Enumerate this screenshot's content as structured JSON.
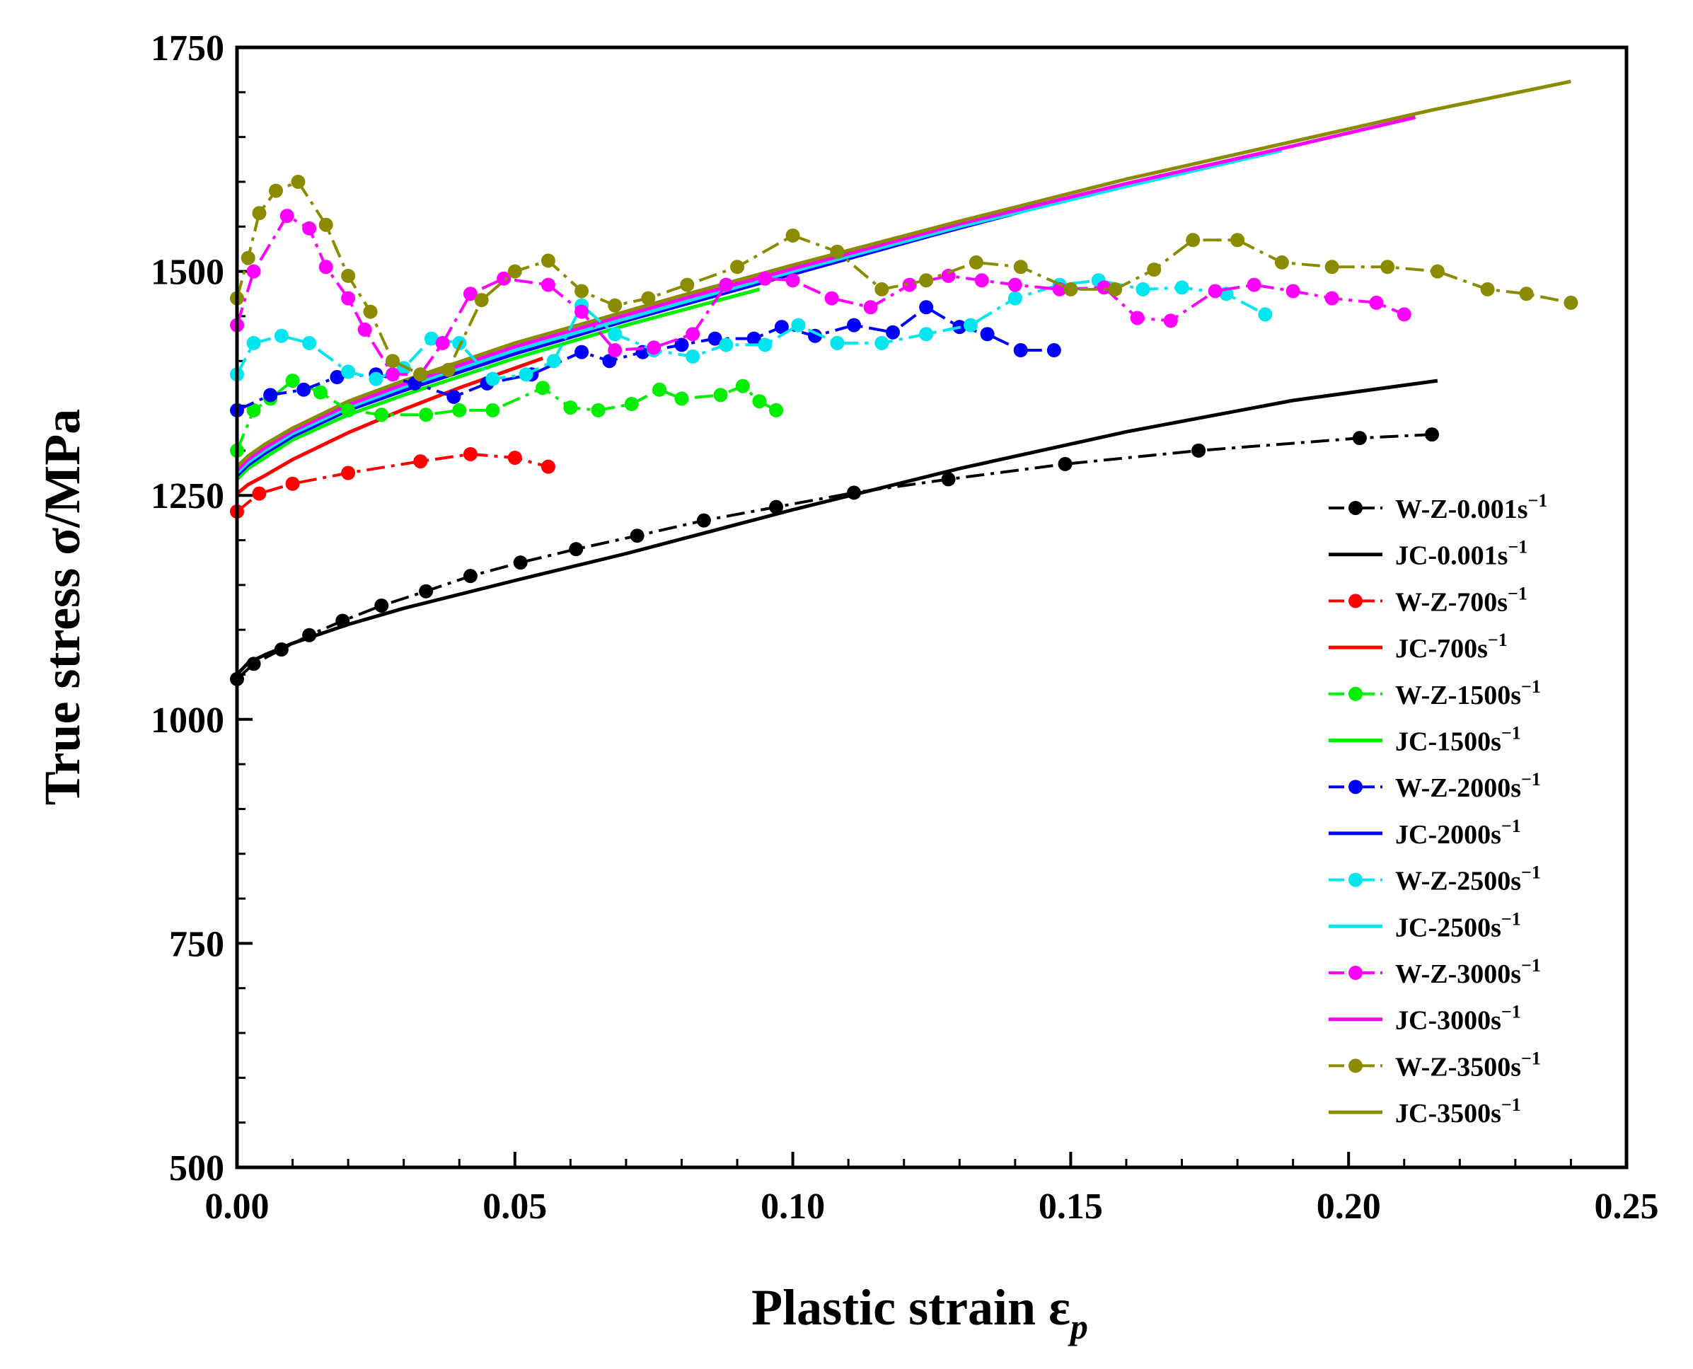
{
  "chart_data": {
    "type": "line",
    "xlabel": "Plastic strain ε",
    "xlabel_sub": "p",
    "ylabel": "True stress σ/MPa",
    "xlim": [
      0,
      0.25
    ],
    "ylim": [
      500,
      1750
    ],
    "xticks": [
      0,
      0.05,
      0.1,
      0.15,
      0.2,
      0.25
    ],
    "xtick_labels": [
      "0.00",
      "0.05",
      "0.10",
      "0.15",
      "0.20",
      "0.25"
    ],
    "yticks": [
      500,
      750,
      1000,
      1250,
      1500,
      1750
    ],
    "ytick_labels": [
      "500",
      "750",
      "1000",
      "1250",
      "1500",
      "1750"
    ],
    "legend_position": "lower-right",
    "series": [
      {
        "name": "W-Z-0.001s",
        "sup": "−1",
        "kind": "test",
        "color": "#000000",
        "x": [
          0.0,
          0.003,
          0.008,
          0.013,
          0.019,
          0.026,
          0.034,
          0.042,
          0.051,
          0.061,
          0.072,
          0.084,
          0.097,
          0.111,
          0.128,
          0.149,
          0.173,
          0.202,
          0.215
        ],
        "y": [
          1045,
          1062,
          1078,
          1094,
          1110,
          1127,
          1143,
          1160,
          1175,
          1190,
          1205,
          1222,
          1237,
          1253,
          1268,
          1285,
          1300,
          1314,
          1318
        ]
      },
      {
        "name": "JC-0.001s",
        "sup": "−1",
        "kind": "model",
        "color": "#000000",
        "x": [
          0.0,
          0.002,
          0.005,
          0.01,
          0.02,
          0.03,
          0.05,
          0.07,
          0.1,
          0.13,
          0.16,
          0.19,
          0.216
        ],
        "y": [
          1050,
          1063,
          1072,
          1085,
          1106,
          1124,
          1155,
          1185,
          1234,
          1280,
          1321,
          1356,
          1378
        ]
      },
      {
        "name": "W-Z-700s",
        "sup": "−1",
        "kind": "test",
        "color": "#ff0000",
        "x": [
          0.0,
          0.004,
          0.01,
          0.02,
          0.033,
          0.042,
          0.05,
          0.056
        ],
        "y": [
          1232,
          1252,
          1263,
          1275,
          1288,
          1296,
          1292,
          1282
        ]
      },
      {
        "name": "JC-700s",
        "sup": "−1",
        "kind": "model",
        "color": "#ff0000",
        "x": [
          0.0,
          0.002,
          0.005,
          0.01,
          0.02,
          0.03,
          0.04,
          0.05,
          0.055
        ],
        "y": [
          1252,
          1262,
          1272,
          1290,
          1320,
          1346,
          1370,
          1392,
          1403
        ]
      },
      {
        "name": "W-Z-1500s",
        "sup": "−1",
        "kind": "test",
        "color": "#00ee00",
        "x": [
          0.0,
          0.003,
          0.006,
          0.01,
          0.015,
          0.02,
          0.026,
          0.034,
          0.04,
          0.046,
          0.055,
          0.06,
          0.065,
          0.071,
          0.076,
          0.08,
          0.087,
          0.091,
          0.094,
          0.097
        ],
        "y": [
          1300,
          1345,
          1358,
          1378,
          1365,
          1345,
          1340,
          1340,
          1345,
          1345,
          1370,
          1348,
          1345,
          1352,
          1368,
          1358,
          1362,
          1372,
          1355,
          1345
        ]
      },
      {
        "name": "JC-1500s",
        "sup": "−1",
        "kind": "model",
        "color": "#00ee00",
        "x": [
          0.0,
          0.002,
          0.005,
          0.01,
          0.02,
          0.03,
          0.05,
          0.07,
          0.094
        ],
        "y": [
          1268,
          1280,
          1292,
          1312,
          1340,
          1362,
          1403,
          1440,
          1480
        ]
      },
      {
        "name": "W-Z-2000s",
        "sup": "−1",
        "kind": "test",
        "color": "#0000ff",
        "x": [
          0.0,
          0.006,
          0.012,
          0.018,
          0.025,
          0.032,
          0.039,
          0.045,
          0.053,
          0.062,
          0.067,
          0.073,
          0.08,
          0.086,
          0.093,
          0.098,
          0.104,
          0.111,
          0.118,
          0.124,
          0.13,
          0.135,
          0.141,
          0.147
        ],
        "y": [
          1345,
          1362,
          1368,
          1382,
          1385,
          1375,
          1360,
          1375,
          1385,
          1410,
          1400,
          1410,
          1418,
          1425,
          1425,
          1438,
          1428,
          1440,
          1432,
          1460,
          1438,
          1430,
          1412,
          1412
        ]
      },
      {
        "name": "JC-2000s",
        "sup": "−1",
        "kind": "model",
        "color": "#0000ff",
        "x": [
          0.0,
          0.002,
          0.005,
          0.01,
          0.02,
          0.03,
          0.05,
          0.07,
          0.1,
          0.125,
          0.148
        ],
        "y": [
          1272,
          1284,
          1297,
          1316,
          1345,
          1367,
          1408,
          1445,
          1497,
          1540,
          1578
        ]
      },
      {
        "name": "W-Z-2500s",
        "sup": "−1",
        "kind": "test",
        "color": "#00e5ee",
        "x": [
          0.0,
          0.003,
          0.008,
          0.013,
          0.02,
          0.025,
          0.03,
          0.035,
          0.04,
          0.046,
          0.052,
          0.057,
          0.062,
          0.068,
          0.075,
          0.082,
          0.088,
          0.095,
          0.101,
          0.108,
          0.116,
          0.124,
          0.132,
          0.14,
          0.148,
          0.155,
          0.163,
          0.17,
          0.178,
          0.185
        ],
        "y": [
          1385,
          1420,
          1428,
          1420,
          1388,
          1380,
          1392,
          1425,
          1420,
          1380,
          1385,
          1400,
          1462,
          1430,
          1412,
          1405,
          1418,
          1418,
          1440,
          1420,
          1420,
          1430,
          1440,
          1470,
          1485,
          1490,
          1480,
          1482,
          1475,
          1452
        ]
      },
      {
        "name": "JC-2500s",
        "sup": "−1",
        "kind": "model",
        "color": "#00e5ee",
        "x": [
          0.0,
          0.002,
          0.005,
          0.01,
          0.02,
          0.03,
          0.05,
          0.08,
          0.1,
          0.13,
          0.16,
          0.188
        ],
        "y": [
          1275,
          1287,
          1300,
          1319,
          1348,
          1371,
          1412,
          1465,
          1500,
          1550,
          1595,
          1635
        ]
      },
      {
        "name": "W-Z-3000s",
        "sup": "−1",
        "kind": "test",
        "color": "#ff00ff",
        "x": [
          0.0,
          0.003,
          0.009,
          0.013,
          0.016,
          0.02,
          0.023,
          0.028,
          0.033,
          0.037,
          0.042,
          0.048,
          0.056,
          0.062,
          0.068,
          0.075,
          0.082,
          0.088,
          0.095,
          0.1,
          0.107,
          0.114,
          0.121,
          0.128,
          0.134,
          0.14,
          0.148,
          0.156,
          0.162,
          0.168,
          0.176,
          0.183,
          0.19,
          0.197,
          0.205,
          0.21
        ],
        "y": [
          1440,
          1500,
          1562,
          1548,
          1505,
          1470,
          1435,
          1385,
          1385,
          1420,
          1475,
          1492,
          1485,
          1455,
          1412,
          1415,
          1430,
          1485,
          1492,
          1490,
          1470,
          1460,
          1485,
          1495,
          1490,
          1485,
          1480,
          1482,
          1448,
          1445,
          1478,
          1485,
          1478,
          1470,
          1465,
          1452
        ]
      },
      {
        "name": "JC-3000s",
        "sup": "−1",
        "kind": "model",
        "color": "#ff00ff",
        "x": [
          0.0,
          0.002,
          0.005,
          0.01,
          0.02,
          0.03,
          0.05,
          0.08,
          0.1,
          0.13,
          0.16,
          0.19,
          0.212
        ],
        "y": [
          1278,
          1290,
          1303,
          1322,
          1351,
          1374,
          1416,
          1469,
          1503,
          1553,
          1598,
          1640,
          1672
        ]
      },
      {
        "name": "W-Z-3500s",
        "sup": "−1",
        "kind": "test",
        "color": "#8b8b00",
        "x": [
          0.0,
          0.002,
          0.004,
          0.007,
          0.011,
          0.016,
          0.02,
          0.024,
          0.028,
          0.033,
          0.038,
          0.044,
          0.05,
          0.056,
          0.062,
          0.068,
          0.074,
          0.081,
          0.09,
          0.1,
          0.108,
          0.116,
          0.124,
          0.133,
          0.141,
          0.15,
          0.158,
          0.165,
          0.172,
          0.18,
          0.188,
          0.197,
          0.207,
          0.216,
          0.225,
          0.232,
          0.24
        ],
        "y": [
          1470,
          1515,
          1565,
          1590,
          1600,
          1552,
          1495,
          1455,
          1400,
          1385,
          1390,
          1468,
          1500,
          1512,
          1478,
          1462,
          1470,
          1485,
          1505,
          1540,
          1522,
          1480,
          1490,
          1510,
          1505,
          1480,
          1480,
          1502,
          1535,
          1535,
          1510,
          1505,
          1505,
          1500,
          1480,
          1475,
          1465
        ]
      },
      {
        "name": "JC-3500s",
        "sup": "−1",
        "kind": "model",
        "color": "#8b8b00",
        "x": [
          0.0,
          0.002,
          0.005,
          0.01,
          0.02,
          0.03,
          0.05,
          0.08,
          0.1,
          0.13,
          0.16,
          0.19,
          0.215,
          0.24
        ],
        "y": [
          1282,
          1294,
          1307,
          1325,
          1355,
          1378,
          1420,
          1473,
          1507,
          1556,
          1603,
          1645,
          1680,
          1712
        ]
      }
    ]
  }
}
